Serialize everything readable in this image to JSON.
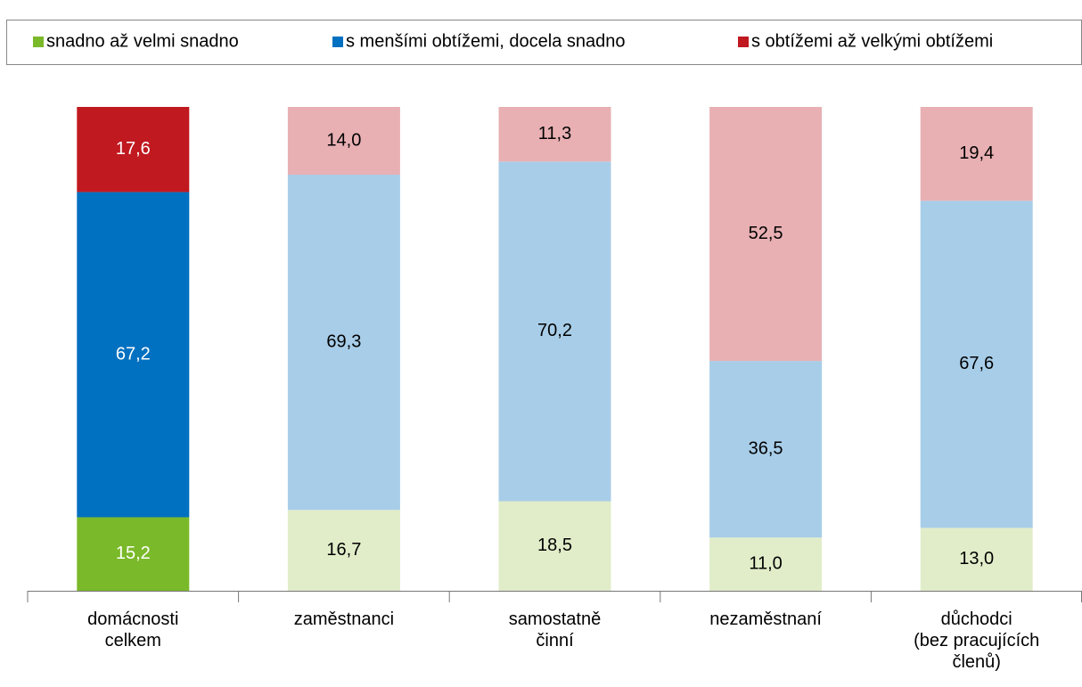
{
  "chart_data": {
    "type": "stacked_bar",
    "categories": [
      "domácnosti\ncelkem",
      "zaměstnanci",
      "samostatně\nčinní",
      "nezaměstnaní",
      "důchodci\n(bez pracujících\nčlenů)"
    ],
    "series": [
      {
        "name": "snadno až velmi snadno",
        "color": "#7ab929",
        "colors": [
          "#7ab929",
          "#e1edc9",
          "#e1edc9",
          "#e1edc9",
          "#e1edc9"
        ],
        "values": [
          15.2,
          16.7,
          18.5,
          11.0,
          13.0
        ],
        "value_labels": [
          "15,2",
          "16,7",
          "18,5",
          "11,0",
          "13,0"
        ]
      },
      {
        "name": "s menšími obtížemi, docela snadno",
        "color": "#0070c0",
        "colors": [
          "#0070c0",
          "#a8cde8",
          "#a8cde8",
          "#a8cde8",
          "#a8cde8"
        ],
        "values": [
          67.2,
          69.3,
          70.2,
          36.5,
          67.6
        ],
        "value_labels": [
          "67,2",
          "69,3",
          "70,2",
          "36,5",
          "67,6"
        ]
      },
      {
        "name": "s obtížemi až velkými obtížemi",
        "color": "#c0191f",
        "colors": [
          "#c0191f",
          "#e8b0b3",
          "#e8b0b3",
          "#e8b0b3",
          "#e8b0b3"
        ],
        "values": [
          17.6,
          14.0,
          11.3,
          52.5,
          19.4
        ],
        "value_labels": [
          "17,6",
          "14,0",
          "11,3",
          "52,5",
          "19,4"
        ]
      }
    ],
    "label_colors": [
      "#ffffff",
      "#000000",
      "#000000",
      "#000000",
      "#000000"
    ],
    "ylim": [
      0,
      100
    ],
    "legend": "top"
  }
}
